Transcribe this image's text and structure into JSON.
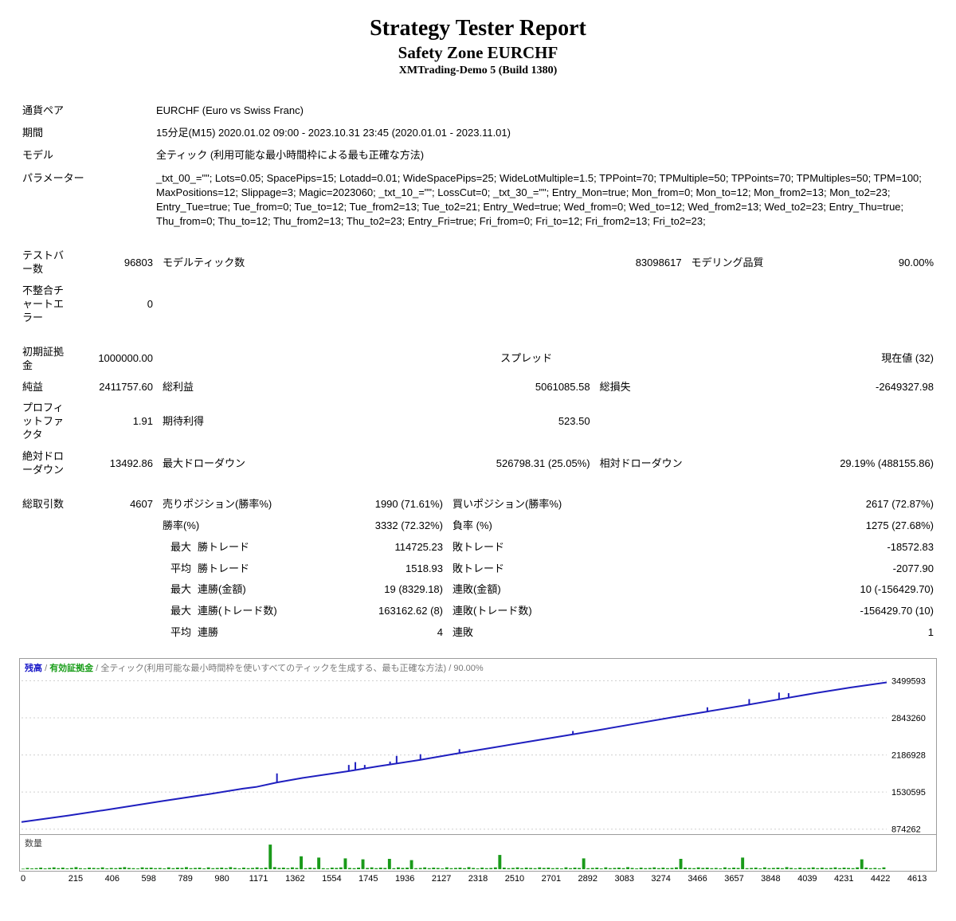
{
  "header": {
    "title": "Strategy Tester Report",
    "subtitle": "Safety Zone EURCHF",
    "build": "XMTrading-Demo 5 (Build 1380)"
  },
  "info": {
    "symbol_label": "通貨ペア",
    "symbol": "EURCHF (Euro vs Swiss Franc)",
    "period_label": "期間",
    "period": "15分足(M15) 2020.01.02 09:00 - 2023.10.31 23:45 (2020.01.01 - 2023.11.01)",
    "model_label": "モデル",
    "model": "全ティック (利用可能な最小時間枠による最も正確な方法)",
    "params_label": "パラメーター",
    "params": "_txt_00_=\"\"; Lots=0.05; SpacePips=15; Lotadd=0.01; WideSpacePips=25; WideLotMultiple=1.5; TPPoint=70; TPMultiple=50; TPPoints=70; TPMultiples=50; TPM=100; MaxPositions=12; Slippage=3; Magic=2023060; _txt_10_=\"\"; LossCut=0; _txt_30_=\"\"; Entry_Mon=true; Mon_from=0; Mon_to=12; Mon_from2=13; Mon_to2=23; Entry_Tue=true; Tue_from=0; Tue_to=12; Tue_from2=13; Tue_to2=21; Entry_Wed=true; Wed_from=0; Wed_to=12; Wed_from2=13; Wed_to2=23; Entry_Thu=true; Thu_from=0; Thu_to=12; Thu_from2=13; Thu_to2=23; Entry_Fri=true; Fri_from=0; Fri_to=12; Fri_from2=13; Fri_to2=23;"
  },
  "section_bars": {
    "bars_label": "テストバー数",
    "bars": "96803",
    "ticks_label": "モデルティック数",
    "ticks": "83098617",
    "quality_label": "モデリング品質",
    "quality": "90.00%",
    "mismatch_label": "不整合チャートエラー",
    "mismatch": "0"
  },
  "section_money": {
    "deposit_label": "初期証拠金",
    "deposit": "1000000.00",
    "spread_label": "スプレッド",
    "spread": "現在値 (32)",
    "netprofit_label": "純益",
    "netprofit": "2411757.60",
    "grossprofit_label": "総利益",
    "grossprofit": "5061085.58",
    "grossloss_label": "総損失",
    "grossloss": "-2649327.98",
    "pf_label": "プロフィットファクタ",
    "pf": "1.91",
    "expected_label": "期待利得",
    "expected": "523.50",
    "absdd_label": "絶対ドローダウン",
    "absdd": "13492.86",
    "maxdd_label": "最大ドローダウン",
    "maxdd": "526798.31 (25.05%)",
    "reldd_label": "相対ドローダウン",
    "reldd": "29.19% (488155.86)"
  },
  "section_trades": {
    "total_label": "総取引数",
    "total": "4607",
    "short_label": "売りポジション(勝率%)",
    "short": "1990 (71.61%)",
    "long_label": "買いポジション(勝率%)",
    "long": "2617 (72.87%)",
    "winrate_label": "勝率(%)",
    "winrate": "3332 (72.32%)",
    "lossrate_label": "負率 (%)",
    "lossrate": "1275 (27.68%)",
    "sub_max": "最大",
    "sub_avg": "平均",
    "win_trade_label": "勝トレード",
    "largest_win": "114725.23",
    "loss_trade_label": "敗トレード",
    "largest_loss": "-18572.83",
    "avg_win": "1518.93",
    "avg_loss": "-2077.90",
    "conswins_money_label": "連勝(金額)",
    "conswins_money": "19 (8329.18)",
    "consloss_money_label": "連敗(金額)",
    "consloss_money": "10 (-156429.70)",
    "conswins_trades_label": "連勝(トレード数)",
    "conswins_trades": "163162.62 (8)",
    "consloss_trades_label": "連敗(トレード数)",
    "consloss_trades": "-156429.70 (10)",
    "avg_cons_win_label": "連勝",
    "avg_cons_win": "4",
    "avg_cons_loss_label": "連敗",
    "avg_cons_loss": "1"
  },
  "chart": {
    "legend_balance": "残高",
    "legend_equity": "有効証拠金",
    "legend_desc": "全ティック(利用可能な最小時間枠を使いすべてのティックを生成する、最も正確な方法)",
    "legend_quality": "90.00%",
    "y_ticks": [
      "3499593",
      "2843260",
      "2186928",
      "1530595",
      "874262"
    ],
    "y_min": 870000,
    "y_max": 3520000,
    "line_color": "#1f1fbf",
    "spike_color": "#1f1fbf",
    "grid_color": "#d0d0d0",
    "bg_color": "#ffffff",
    "equity_points": [
      [
        0,
        1000000
      ],
      [
        250,
        1115000
      ],
      [
        500,
        1240000
      ],
      [
        750,
        1370000
      ],
      [
        1000,
        1495000
      ],
      [
        1180,
        1590000
      ],
      [
        1250,
        1620000
      ],
      [
        1362,
        1700000
      ],
      [
        1500,
        1780000
      ],
      [
        1680,
        1870000
      ],
      [
        1745,
        1900000
      ],
      [
        1900,
        1985000
      ],
      [
        1970,
        2020000
      ],
      [
        2127,
        2100000
      ],
      [
        2300,
        2200000
      ],
      [
        2510,
        2315000
      ],
      [
        2701,
        2420000
      ],
      [
        2892,
        2525000
      ],
      [
        3083,
        2630000
      ],
      [
        3274,
        2740000
      ],
      [
        3466,
        2850000
      ],
      [
        3657,
        2955000
      ],
      [
        3848,
        3060000
      ],
      [
        4039,
        3170000
      ],
      [
        4231,
        3280000
      ],
      [
        4422,
        3380000
      ],
      [
        4613,
        3470000
      ]
    ],
    "equity_spikes": [
      [
        1362,
        1860000
      ],
      [
        1745,
        2010000
      ],
      [
        1780,
        2060000
      ],
      [
        1830,
        2010000
      ],
      [
        1965,
        2070000
      ],
      [
        2000,
        2170000
      ],
      [
        2127,
        2200000
      ],
      [
        2335,
        2290000
      ],
      [
        2940,
        2610000
      ],
      [
        3657,
        3030000
      ],
      [
        3880,
        3175000
      ],
      [
        4039,
        3290000
      ],
      [
        4090,
        3280000
      ]
    ]
  },
  "volume": {
    "label": "数量",
    "color": "#1a9a1a",
    "max": 120,
    "bars": [
      2,
      5,
      3,
      4,
      6,
      3,
      5,
      7,
      4,
      6,
      3,
      5,
      8,
      4,
      3,
      6,
      5,
      4,
      7,
      3,
      5,
      4,
      6,
      8,
      5,
      4,
      3,
      7,
      5,
      6,
      4,
      5,
      3,
      7,
      4,
      6,
      5,
      8,
      4,
      5,
      6,
      3,
      7,
      4,
      5,
      6,
      4,
      8,
      5,
      3,
      6,
      4,
      5,
      7,
      4,
      6,
      95,
      8,
      5,
      6,
      4,
      7,
      5,
      50,
      4,
      6,
      5,
      45,
      4,
      3,
      6,
      5,
      7,
      42,
      5,
      4,
      6,
      38,
      5,
      7,
      4,
      6,
      5,
      40,
      4,
      7,
      5,
      6,
      35,
      4,
      5,
      7,
      4,
      6,
      5,
      3,
      7,
      4,
      5,
      6,
      4,
      8,
      5,
      3,
      6,
      4,
      5,
      7,
      55,
      6,
      4,
      5,
      7,
      4,
      6,
      5,
      4,
      7,
      5,
      6,
      4,
      5,
      3,
      7,
      4,
      6,
      5,
      42,
      4,
      5,
      6,
      3,
      7,
      4,
      5,
      6,
      4,
      8,
      5,
      3,
      6,
      4,
      5,
      7,
      4,
      6,
      4,
      5,
      7,
      40,
      6,
      5,
      4,
      7,
      5,
      6,
      4,
      5,
      3,
      7,
      4,
      6,
      5,
      45,
      4,
      5,
      6,
      3,
      7,
      4,
      5,
      6,
      4,
      8,
      5,
      3,
      6,
      4,
      5,
      7,
      4,
      6,
      4,
      5,
      7,
      4,
      6,
      5,
      4,
      7,
      38,
      6,
      4,
      5,
      3,
      7
    ]
  },
  "x_axis": [
    "0",
    "215",
    "406",
    "598",
    "789",
    "980",
    "1171",
    "1362",
    "1554",
    "1745",
    "1936",
    "2127",
    "2318",
    "2510",
    "2701",
    "2892",
    "3083",
    "3274",
    "3466",
    "3657",
    "3848",
    "4039",
    "4231",
    "4422",
    "4613"
  ]
}
